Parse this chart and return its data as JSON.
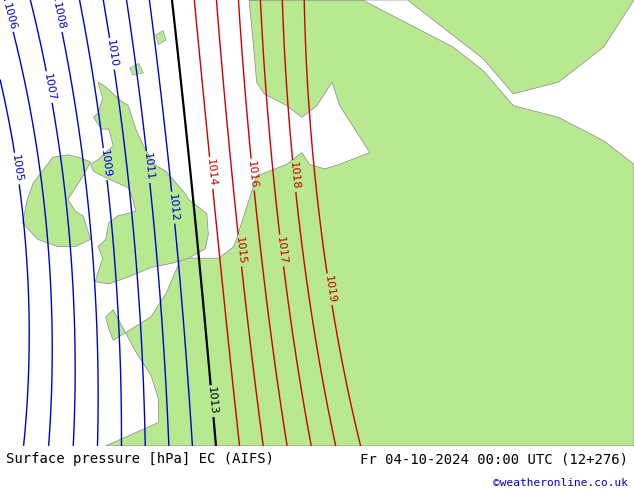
{
  "title_left": "Surface pressure [hPa] EC (AIFS)",
  "title_right": "Fr 04-10-2024 00:00 UTC (12+276)",
  "credit": "©weatheronline.co.uk",
  "background_land": "#b8e890",
  "background_sea": "#c8c8d8",
  "background_gray_shade": "#c0c0cc",
  "isobar_blue_color": "#0000cc",
  "isobar_black_color": "#000000",
  "isobar_red_color": "#cc0000",
  "coastline_color": "#888888",
  "fig_width": 6.34,
  "fig_height": 4.9,
  "dpi": 100,
  "title_fontsize": 10,
  "credit_fontsize": 8,
  "label_fontsize": 8
}
